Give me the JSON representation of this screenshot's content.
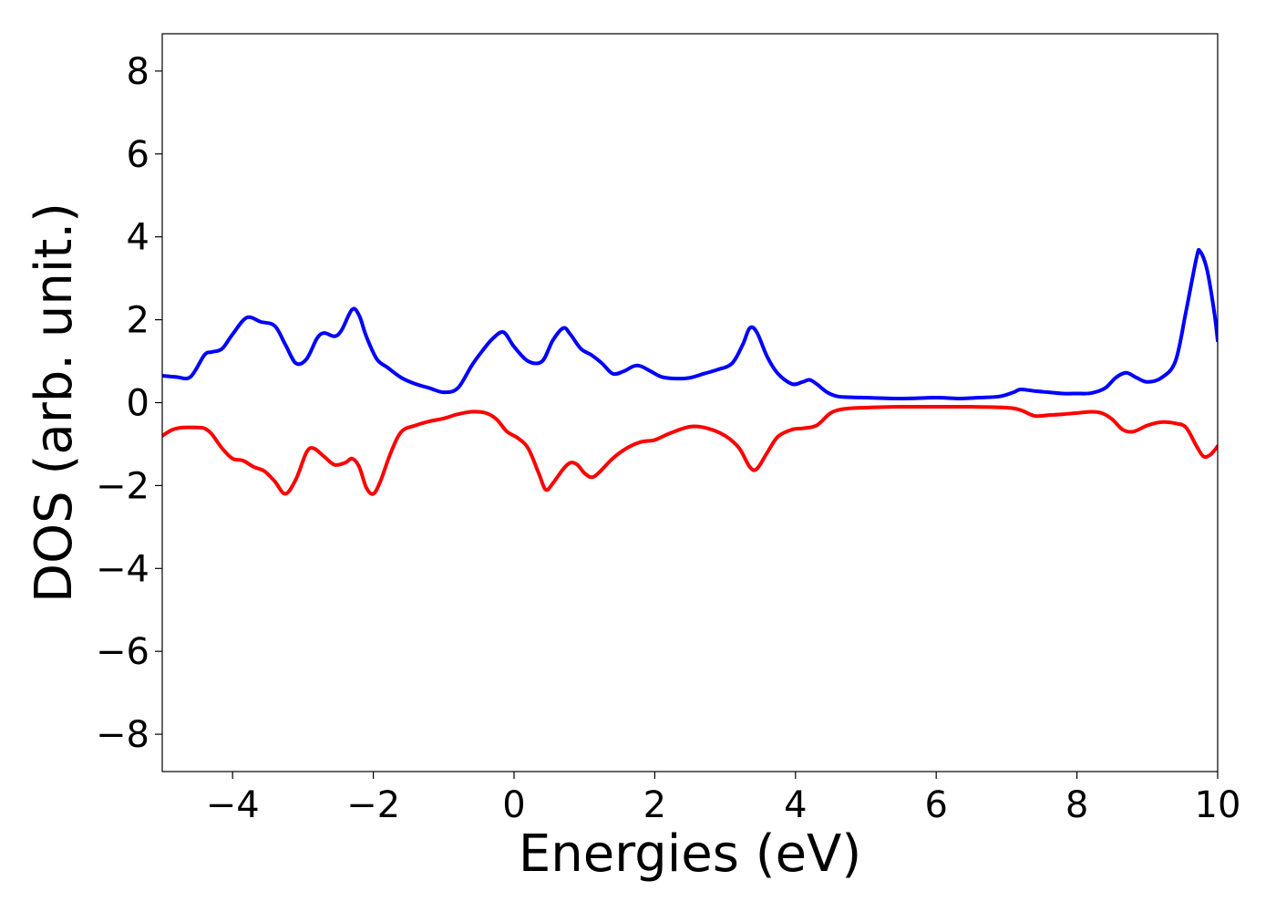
{
  "chart_data": {
    "type": "line",
    "title": "",
    "xlabel": "Energies (eV)",
    "ylabel": "DOS (arb. unit.)",
    "xlim": [
      -5,
      10
    ],
    "ylim": [
      -8.9,
      8.9
    ],
    "xticks": [
      -4,
      -2,
      0,
      2,
      4,
      6,
      8,
      10
    ],
    "yticks": [
      8,
      6,
      4,
      2,
      0,
      -2,
      -4,
      -6,
      -8
    ],
    "xtick_labels": [
      "−4",
      "−2",
      "0",
      "2",
      "4",
      "6",
      "8",
      "10"
    ],
    "ytick_labels": [
      "8",
      "6",
      "4",
      "2",
      "0",
      "−2",
      "−4",
      "−6",
      "−8"
    ],
    "grid": false,
    "legend": "none",
    "series": [
      {
        "color": "#0000ff",
        "x": [
          -5.0,
          -4.8,
          -4.6,
          -4.4,
          -4.3,
          -4.15,
          -4.0,
          -3.8,
          -3.6,
          -3.4,
          -3.25,
          -3.1,
          -2.95,
          -2.8,
          -2.7,
          -2.55,
          -2.45,
          -2.3,
          -2.2,
          -2.1,
          -1.95,
          -1.8,
          -1.6,
          -1.4,
          -1.2,
          -1.0,
          -0.8,
          -0.6,
          -0.45,
          -0.3,
          -0.15,
          0.0,
          0.2,
          0.4,
          0.55,
          0.7,
          0.8,
          0.95,
          1.1,
          1.25,
          1.4,
          1.55,
          1.7,
          1.8,
          1.95,
          2.1,
          2.3,
          2.5,
          2.7,
          2.9,
          3.1,
          3.25,
          3.35,
          3.45,
          3.6,
          3.75,
          3.95,
          4.1,
          4.2,
          4.3,
          4.45,
          4.6,
          4.8,
          5.0,
          5.5,
          6.0,
          6.3,
          6.6,
          6.9,
          7.1,
          7.2,
          7.4,
          7.6,
          7.8,
          8.0,
          8.2,
          8.4,
          8.55,
          8.7,
          8.85,
          9.0,
          9.2,
          9.4,
          9.55,
          9.7,
          9.75,
          9.85,
          9.95,
          10.0
        ],
        "y": [
          0.65,
          0.62,
          0.62,
          1.15,
          1.22,
          1.3,
          1.65,
          2.05,
          1.95,
          1.85,
          1.4,
          0.95,
          1.05,
          1.55,
          1.68,
          1.6,
          1.75,
          2.25,
          2.1,
          1.6,
          1.05,
          0.85,
          0.6,
          0.45,
          0.35,
          0.25,
          0.35,
          0.9,
          1.25,
          1.55,
          1.7,
          1.35,
          1.0,
          1.0,
          1.5,
          1.8,
          1.65,
          1.3,
          1.15,
          0.95,
          0.7,
          0.75,
          0.88,
          0.88,
          0.75,
          0.62,
          0.58,
          0.6,
          0.7,
          0.8,
          0.95,
          1.4,
          1.8,
          1.7,
          1.1,
          0.7,
          0.45,
          0.5,
          0.55,
          0.45,
          0.25,
          0.15,
          0.13,
          0.12,
          0.1,
          0.12,
          0.1,
          0.12,
          0.15,
          0.25,
          0.32,
          0.28,
          0.25,
          0.22,
          0.22,
          0.23,
          0.35,
          0.6,
          0.72,
          0.6,
          0.5,
          0.6,
          1.0,
          2.2,
          3.5,
          3.65,
          3.2,
          2.2,
          1.5
        ]
      },
      {
        "color": "#ff0000",
        "x": [
          -5.0,
          -4.85,
          -4.7,
          -4.5,
          -4.4,
          -4.3,
          -4.15,
          -4.0,
          -3.85,
          -3.7,
          -3.55,
          -3.4,
          -3.25,
          -3.1,
          -2.95,
          -2.85,
          -2.7,
          -2.55,
          -2.4,
          -2.3,
          -2.2,
          -2.1,
          -2.0,
          -1.9,
          -1.75,
          -1.6,
          -1.4,
          -1.2,
          -1.0,
          -0.8,
          -0.6,
          -0.4,
          -0.25,
          -0.1,
          0.05,
          0.2,
          0.35,
          0.45,
          0.55,
          0.7,
          0.8,
          0.9,
          1.0,
          1.1,
          1.2,
          1.4,
          1.6,
          1.8,
          2.0,
          2.2,
          2.5,
          2.75,
          3.0,
          3.2,
          3.35,
          3.45,
          3.6,
          3.75,
          3.95,
          4.1,
          4.3,
          4.5,
          4.7,
          5.0,
          5.5,
          6.0,
          6.5,
          7.0,
          7.2,
          7.4,
          7.6,
          7.8,
          8.0,
          8.2,
          8.35,
          8.5,
          8.65,
          8.8,
          9.0,
          9.2,
          9.4,
          9.55,
          9.7,
          9.8,
          9.9,
          10.0
        ],
        "y": [
          -0.8,
          -0.65,
          -0.6,
          -0.6,
          -0.62,
          -0.75,
          -1.1,
          -1.35,
          -1.4,
          -1.55,
          -1.65,
          -1.9,
          -2.2,
          -1.85,
          -1.2,
          -1.1,
          -1.3,
          -1.5,
          -1.45,
          -1.35,
          -1.55,
          -2.05,
          -2.2,
          -1.9,
          -1.2,
          -0.7,
          -0.55,
          -0.45,
          -0.38,
          -0.28,
          -0.22,
          -0.25,
          -0.4,
          -0.7,
          -0.85,
          -1.1,
          -1.7,
          -2.1,
          -1.95,
          -1.6,
          -1.45,
          -1.5,
          -1.7,
          -1.8,
          -1.7,
          -1.35,
          -1.1,
          -0.95,
          -0.9,
          -0.75,
          -0.58,
          -0.62,
          -0.8,
          -1.1,
          -1.55,
          -1.6,
          -1.2,
          -0.82,
          -0.65,
          -0.62,
          -0.55,
          -0.25,
          -0.15,
          -0.12,
          -0.1,
          -0.1,
          -0.1,
          -0.12,
          -0.18,
          -0.32,
          -0.3,
          -0.28,
          -0.25,
          -0.22,
          -0.25,
          -0.4,
          -0.65,
          -0.7,
          -0.55,
          -0.47,
          -0.5,
          -0.6,
          -1.05,
          -1.3,
          -1.25,
          -1.05
        ]
      }
    ]
  }
}
